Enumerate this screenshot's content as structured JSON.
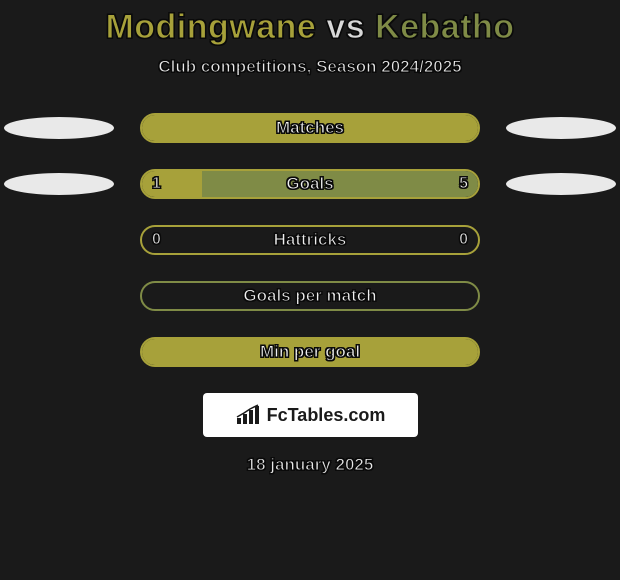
{
  "title": {
    "player1": "Modingwane",
    "vs": "vs",
    "player2": "Kebatho"
  },
  "subtitle": "Club competitions, Season 2024/2025",
  "colors": {
    "player1": "#a7a13a",
    "player2": "#7f8b46",
    "background": "#1a1a1a",
    "ellipse": "#e9e9e9",
    "text": "#e8e8e8"
  },
  "stats": [
    {
      "label": "Matches",
      "val1": "",
      "val2": "",
      "fill1_pct": 100,
      "fill2_pct": 0,
      "border": "p1",
      "show_ellipses": true
    },
    {
      "label": "Goals",
      "val1": "1",
      "val2": "5",
      "fill1_pct": 18,
      "fill2_pct": 82,
      "border": "p1",
      "show_ellipses": true
    },
    {
      "label": "Hattricks",
      "val1": "0",
      "val2": "0",
      "fill1_pct": 0,
      "fill2_pct": 0,
      "border": "p1",
      "show_ellipses": false
    },
    {
      "label": "Goals per match",
      "val1": "",
      "val2": "",
      "fill1_pct": 0,
      "fill2_pct": 0,
      "border": "p2",
      "show_ellipses": false
    },
    {
      "label": "Min per goal",
      "val1": "",
      "val2": "",
      "fill1_pct": 100,
      "fill2_pct": 0,
      "border": "p1",
      "show_ellipses": false
    }
  ],
  "logo": {
    "text": "FcTables.com"
  },
  "date": "18 january 2025"
}
